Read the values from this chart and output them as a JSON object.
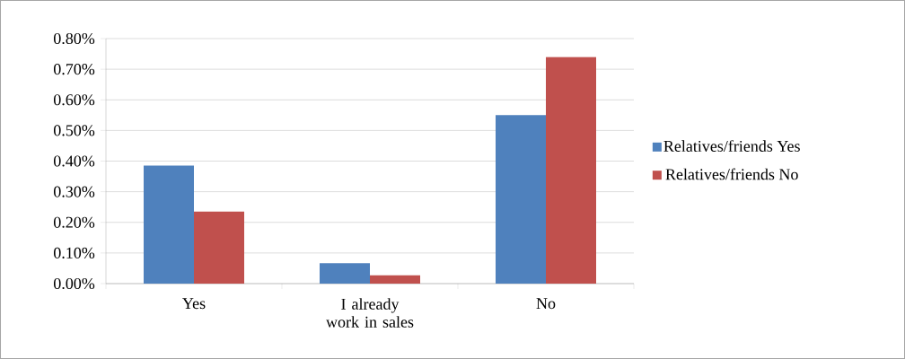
{
  "chart_data": {
    "type": "bar",
    "categories": [
      "Yes",
      "I already work in sales",
      "No"
    ],
    "series": [
      {
        "name": "Relatives/friends Yes",
        "color": "#4f81bd",
        "values": [
          0.385,
          0.067,
          0.55
        ]
      },
      {
        "name": "Relatives/friends No",
        "color": "#c0504d",
        "values": [
          0.235,
          0.027,
          0.74
        ]
      }
    ],
    "ylim": [
      0,
      0.8
    ],
    "yticks": [
      {
        "value": 0,
        "label": "0.00%"
      },
      {
        "value": 0.1,
        "label": "0.10%"
      },
      {
        "value": 0.2,
        "label": "0.20%"
      },
      {
        "value": 0.3,
        "label": "0.30%"
      },
      {
        "value": 0.4,
        "label": "0.40%"
      },
      {
        "value": 0.5,
        "label": "0.50%"
      },
      {
        "value": 0.6,
        "label": "0.60%"
      },
      {
        "value": 0.7,
        "label": "0.70%"
      },
      {
        "value": 0.8,
        "label": "0.80%"
      }
    ],
    "grid": "y",
    "legend": "right"
  }
}
